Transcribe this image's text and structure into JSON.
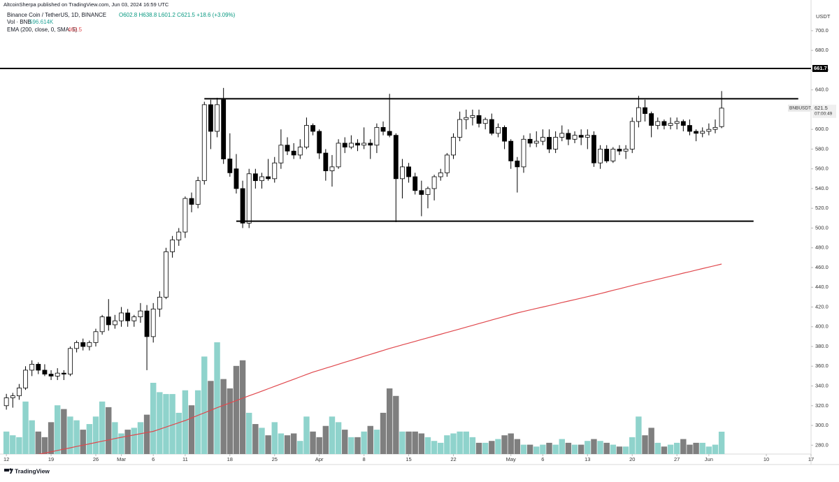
{
  "header": {
    "publisher": "AltcoinSherpa published on TradingView.com, Jun 03, 2024 16:59 UTC",
    "symbol": "Binance Coin / TetherUS, 1D, BINANCE",
    "ohlc": "O602.8 H638.8 L601.2 C621.5 +18.6 (+3.09%)"
  },
  "footer": {
    "brand": "TradingView"
  },
  "chart_data": {
    "type": "candlestick",
    "x": [
      "2024-02-12",
      "2024-02-13",
      "2024-02-14",
      "2024-02-15",
      "2024-02-16",
      "2024-02-17",
      "2024-02-18",
      "2024-02-19",
      "2024-02-20",
      "2024-02-21",
      "2024-02-22",
      "2024-02-23",
      "2024-02-24",
      "2024-02-25",
      "2024-02-26",
      "2024-02-27",
      "2024-02-28",
      "2024-02-29",
      "2024-03-01",
      "2024-03-02",
      "2024-03-03",
      "2024-03-04",
      "2024-03-05",
      "2024-03-06",
      "2024-03-07",
      "2024-03-08",
      "2024-03-09",
      "2024-03-10",
      "2024-03-11",
      "2024-03-12",
      "2024-03-13",
      "2024-03-14",
      "2024-03-15",
      "2024-03-16",
      "2024-03-17",
      "2024-03-18",
      "2024-03-19",
      "2024-03-20",
      "2024-03-21",
      "2024-03-22",
      "2024-03-23",
      "2024-03-24",
      "2024-03-25",
      "2024-03-26",
      "2024-03-27",
      "2024-03-28",
      "2024-03-29",
      "2024-03-30",
      "2024-03-31",
      "2024-04-01",
      "2024-04-02",
      "2024-04-03",
      "2024-04-04",
      "2024-04-05",
      "2024-04-06",
      "2024-04-07",
      "2024-04-08",
      "2024-04-09",
      "2024-04-10",
      "2024-04-11",
      "2024-04-12",
      "2024-04-13",
      "2024-04-14",
      "2024-04-15",
      "2024-04-16",
      "2024-04-17",
      "2024-04-18",
      "2024-04-19",
      "2024-04-20",
      "2024-04-21",
      "2024-04-22",
      "2024-04-23",
      "2024-04-24",
      "2024-04-25",
      "2024-04-26",
      "2024-04-27",
      "2024-04-28",
      "2024-04-29",
      "2024-04-30",
      "2024-05-01",
      "2024-05-02",
      "2024-05-03",
      "2024-05-04",
      "2024-05-05",
      "2024-05-06",
      "2024-05-07",
      "2024-05-08",
      "2024-05-09",
      "2024-05-10",
      "2024-05-11",
      "2024-05-12",
      "2024-05-13",
      "2024-05-14",
      "2024-05-15",
      "2024-05-16",
      "2024-05-17",
      "2024-05-18",
      "2024-05-19",
      "2024-05-20",
      "2024-05-21",
      "2024-05-22",
      "2024-05-23",
      "2024-05-24",
      "2024-05-25",
      "2024-05-26",
      "2024-05-27",
      "2024-05-28",
      "2024-05-29",
      "2024-05-30",
      "2024-05-31",
      "2024-06-01",
      "2024-06-02",
      "2024-06-03"
    ],
    "open": [
      320,
      328,
      330,
      338,
      356,
      362,
      356,
      352,
      350,
      353,
      352,
      378,
      384,
      380,
      384,
      395,
      410,
      402,
      406,
      414,
      406,
      410,
      416,
      390,
      418,
      430,
      476,
      488,
      496,
      530,
      524,
      548,
      625,
      598,
      630,
      570,
      560,
      540,
      505,
      555,
      548,
      552,
      550,
      566,
      584,
      578,
      574,
      582,
      604,
      598,
      576,
      558,
      562,
      586,
      582,
      586,
      584,
      586,
      584,
      602,
      598,
      594,
      550,
      562,
      552,
      538,
      534,
      540,
      552,
      556,
      574,
      592,
      610,
      612,
      614,
      606,
      610,
      596,
      602,
      588,
      568,
      562,
      590,
      586,
      588,
      592,
      580,
      592,
      596,
      590,
      594,
      592,
      594,
      566,
      580,
      568,
      580,
      578,
      580,
      608,
      622,
      616,
      604,
      608,
      604,
      606,
      608,
      604,
      598,
      596,
      598,
      600,
      602.8
    ],
    "high": [
      332,
      333,
      342,
      360,
      366,
      364,
      362,
      356,
      358,
      356,
      380,
      386,
      388,
      386,
      398,
      412,
      428,
      412,
      420,
      418,
      412,
      424,
      422,
      424,
      436,
      480,
      492,
      500,
      532,
      536,
      552,
      628,
      630,
      632,
      642,
      596,
      575,
      548,
      560,
      560,
      556,
      570,
      572,
      600,
      592,
      586,
      590,
      612,
      606,
      600,
      580,
      574,
      590,
      592,
      594,
      590,
      602,
      590,
      606,
      608,
      636,
      596,
      570,
      566,
      556,
      548,
      542,
      554,
      560,
      576,
      596,
      618,
      620,
      620,
      620,
      612,
      616,
      606,
      604,
      590,
      572,
      594,
      596,
      598,
      600,
      600,
      598,
      604,
      600,
      598,
      600,
      600,
      598,
      584,
      584,
      582,
      584,
      584,
      612,
      634,
      630,
      618,
      612,
      610,
      612,
      612,
      610,
      610,
      600,
      602,
      606,
      610,
      638.8
    ],
    "low": [
      316,
      318,
      326,
      336,
      350,
      352,
      350,
      346,
      346,
      346,
      350,
      374,
      376,
      376,
      380,
      392,
      396,
      398,
      400,
      400,
      400,
      404,
      356,
      384,
      410,
      428,
      470,
      482,
      490,
      516,
      520,
      544,
      580,
      592,
      565,
      552,
      535,
      500,
      500,
      540,
      540,
      548,
      546,
      560,
      574,
      570,
      570,
      580,
      594,
      570,
      548,
      542,
      560,
      576,
      580,
      578,
      580,
      570,
      576,
      594,
      592,
      506,
      530,
      546,
      534,
      512,
      520,
      528,
      548,
      552,
      570,
      588,
      600,
      604,
      602,
      600,
      594,
      592,
      580,
      560,
      536,
      556,
      582,
      582,
      584,
      576,
      576,
      588,
      584,
      586,
      584,
      580,
      562,
      560,
      566,
      566,
      574,
      570,
      576,
      602,
      608,
      592,
      600,
      600,
      600,
      600,
      598,
      594,
      588,
      592,
      594,
      596,
      601.2
    ],
    "close": [
      328,
      330,
      338,
      356,
      362,
      356,
      352,
      350,
      353,
      352,
      378,
      384,
      380,
      384,
      395,
      410,
      402,
      406,
      414,
      406,
      410,
      416,
      390,
      418,
      430,
      476,
      488,
      496,
      530,
      524,
      548,
      625,
      598,
      625,
      570,
      556,
      540,
      505,
      555,
      548,
      552,
      550,
      566,
      584,
      578,
      574,
      582,
      604,
      598,
      576,
      558,
      562,
      586,
      582,
      586,
      584,
      586,
      584,
      602,
      598,
      594,
      550,
      562,
      552,
      538,
      534,
      540,
      552,
      556,
      574,
      592,
      610,
      612,
      614,
      606,
      610,
      596,
      602,
      588,
      568,
      562,
      590,
      586,
      588,
      592,
      580,
      592,
      596,
      590,
      594,
      592,
      594,
      566,
      580,
      568,
      580,
      578,
      580,
      608,
      622,
      616,
      604,
      608,
      604,
      606,
      608,
      604,
      598,
      596,
      598,
      600,
      602,
      621.5
    ],
    "up_color": "#ffffff",
    "down_color": "#000000",
    "wick_color": "#000000",
    "volume": {
      "name": "Vol · BNB",
      "last_label": "596.614K",
      "up_color": "#8fd3cc",
      "down_color": "#7f7f7f",
      "values": [
        600,
        500,
        450,
        1400,
        900,
        600,
        450,
        850,
        1300,
        1200,
        1000,
        900,
        650,
        800,
        1000,
        1400,
        1250,
        850,
        550,
        650,
        700,
        850,
        1050,
        1900,
        1650,
        1600,
        1600,
        1100,
        1700,
        1300,
        1700,
        2600,
        1950,
        2980,
        2000,
        1750,
        2350,
        2500,
        1100,
        800,
        700,
        500,
        850,
        550,
        500,
        550,
        350,
        1000,
        600,
        450,
        750,
        1000,
        850,
        650,
        450,
        450,
        600,
        750,
        650,
        1100,
        1750,
        1550,
        600,
        600,
        600,
        550,
        450,
        350,
        300,
        500,
        550,
        600,
        600,
        450,
        300,
        300,
        350,
        400,
        500,
        550,
        400,
        250,
        250,
        200,
        250,
        300,
        250,
        400,
        300,
        250,
        250,
        350,
        400,
        350,
        300,
        250,
        200,
        200,
        450,
        1000,
        500,
        700,
        300,
        200,
        250,
        300,
        400,
        250,
        300,
        300,
        200,
        250,
        596.614
      ]
    },
    "ema": {
      "name": "EMA (200, close, 0, SMA, 5)",
      "color": "#e0484d",
      "values": [
        null,
        null,
        null,
        268,
        269.3,
        270.7,
        272,
        273.3,
        274.7,
        276,
        277.3,
        278.7,
        280,
        281.3,
        282.7,
        284,
        285.3,
        286.7,
        288,
        289.2,
        290.4,
        291.6,
        292.8,
        294,
        296.2,
        298.4,
        300.6,
        302.8,
        305,
        307.6,
        310.2,
        312.8,
        315.4,
        318,
        320.4,
        322.8,
        325.2,
        327.6,
        330,
        332.4,
        334.8,
        337.2,
        339.6,
        342,
        344.4,
        346.8,
        349.2,
        351.6,
        354,
        356,
        358,
        360,
        362,
        364,
        366,
        368,
        370,
        372,
        374,
        376,
        378,
        379.8,
        381.6,
        383.4,
        385.2,
        387,
        388.8,
        390.6,
        392.4,
        394.2,
        396,
        397.8,
        399.6,
        401.4,
        403.2,
        405,
        406.8,
        408.6,
        410.4,
        412.2,
        414,
        415.5,
        417,
        418.5,
        420,
        421.5,
        423,
        424.5,
        426,
        427.5,
        429,
        430.5,
        432,
        433.6,
        435.2,
        436.9,
        438.5,
        440.1,
        441.8,
        443.4,
        445,
        446.5,
        448.1,
        449.6,
        451.2,
        452.7,
        454.3,
        455.8,
        457.4,
        458.9,
        460.5,
        462,
        463.5
      ]
    },
    "hlines": [
      {
        "value": 661.7,
        "label": "661.7"
      }
    ],
    "segments": [
      {
        "value": 631,
        "x": [
          "2024-03-14",
          "2024-06-15"
        ]
      },
      {
        "value": 507,
        "x": [
          "2024-03-19",
          "2024-06-08"
        ]
      }
    ],
    "last_price": {
      "value": 621.5,
      "label": "621.5"
    },
    "countdown": "07:00:49",
    "symbol_tag": "BNBUSDT",
    "y_axis_title": "USDT",
    "ylim": [
      271,
      724
    ],
    "yticks": [
      {
        "value": 280,
        "label": "280.0"
      },
      {
        "value": 300,
        "label": "300.0"
      },
      {
        "value": 320,
        "label": "320.0"
      },
      {
        "value": 340,
        "label": "340.0"
      },
      {
        "value": 360,
        "label": "360.0"
      },
      {
        "value": 380,
        "label": "380.0"
      },
      {
        "value": 400,
        "label": "400.0"
      },
      {
        "value": 420,
        "label": "420.0"
      },
      {
        "value": 440,
        "label": "440.0"
      },
      {
        "value": 460,
        "label": "460.0"
      },
      {
        "value": 480,
        "label": "480.0"
      },
      {
        "value": 500,
        "label": "500.0"
      },
      {
        "value": 520,
        "label": "520.0"
      },
      {
        "value": 540,
        "label": "540.0"
      },
      {
        "value": 560,
        "label": "560.0"
      },
      {
        "value": 580,
        "label": "580.0"
      },
      {
        "value": 600,
        "label": "600.0"
      },
      {
        "value": 620,
        "label": "620.0"
      },
      {
        "value": 640,
        "label": "640.0"
      },
      {
        "value": 660,
        "label": "660.0"
      },
      {
        "value": 680,
        "label": "680.0"
      },
      {
        "value": 700,
        "label": "700.0"
      }
    ],
    "xlim": [
      "2024-02-11",
      "2024-06-17"
    ],
    "xticks": [
      {
        "value": "2024-02-12",
        "label": "12"
      },
      {
        "value": "2024-02-19",
        "label": "19"
      },
      {
        "value": "2024-02-26",
        "label": "26"
      },
      {
        "value": "2024-03-01",
        "label": "Mar"
      },
      {
        "value": "2024-03-06",
        "label": "6"
      },
      {
        "value": "2024-03-11",
        "label": "11"
      },
      {
        "value": "2024-03-18",
        "label": "18"
      },
      {
        "value": "2024-03-25",
        "label": "25"
      },
      {
        "value": "2024-04-01",
        "label": "Apr"
      },
      {
        "value": "2024-04-08",
        "label": "8"
      },
      {
        "value": "2024-04-15",
        "label": "15"
      },
      {
        "value": "2024-04-22",
        "label": "22"
      },
      {
        "value": "2024-05-01",
        "label": "May"
      },
      {
        "value": "2024-05-06",
        "label": "6"
      },
      {
        "value": "2024-05-13",
        "label": "13"
      },
      {
        "value": "2024-05-20",
        "label": "20"
      },
      {
        "value": "2024-05-27",
        "label": "27"
      },
      {
        "value": "2024-06-01",
        "label": "Jun"
      },
      {
        "value": "2024-06-10",
        "label": "10"
      },
      {
        "value": "2024-06-17",
        "label": "17"
      }
    ]
  }
}
